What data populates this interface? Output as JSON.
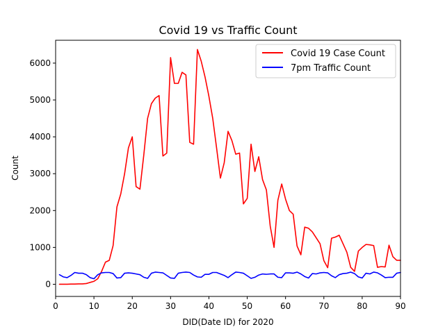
{
  "chart_data": {
    "type": "line",
    "title": "Covid 19 vs Traffic Count",
    "xlabel": "DID(Date ID) for 2020",
    "ylabel": "Count",
    "xlim": [
      0,
      90
    ],
    "ylim": [
      -330,
      6620
    ],
    "x_ticks": [
      0,
      10,
      20,
      30,
      40,
      50,
      60,
      70,
      80,
      90
    ],
    "y_ticks": [
      0,
      1000,
      2000,
      3000,
      4000,
      5000,
      6000
    ],
    "grid": false,
    "legend_position": "top-right",
    "series": [
      {
        "name": "Covid 19 Case Count",
        "color": "#ff0000",
        "x": [
          1,
          2,
          3,
          4,
          5,
          6,
          7,
          8,
          9,
          10,
          11,
          12,
          13,
          14,
          15,
          16,
          17,
          18,
          19,
          20,
          21,
          22,
          23,
          24,
          25,
          26,
          27,
          28,
          29,
          30,
          31,
          32,
          33,
          34,
          35,
          36,
          37,
          38,
          39,
          40,
          41,
          42,
          43,
          44,
          45,
          46,
          47,
          48,
          49,
          50,
          51,
          52,
          53,
          54,
          55,
          56,
          57,
          58,
          59,
          60,
          61,
          62,
          63,
          64,
          65,
          66,
          67,
          68,
          69,
          70,
          71,
          72,
          73,
          74,
          75,
          76,
          77,
          78,
          79,
          80,
          81,
          82,
          83,
          84,
          85,
          86,
          87,
          88,
          89,
          90
        ],
        "values": [
          0,
          0,
          0,
          5,
          5,
          10,
          10,
          20,
          50,
          80,
          150,
          350,
          600,
          650,
          1050,
          2100,
          2450,
          3000,
          3700,
          4000,
          2650,
          2580,
          3500,
          4500,
          4900,
          5050,
          5120,
          3480,
          3560,
          6150,
          5450,
          5450,
          5750,
          5680,
          3850,
          3800,
          6370,
          6050,
          5620,
          5100,
          4500,
          3700,
          2880,
          3300,
          4150,
          3900,
          3530,
          3560,
          2180,
          2330,
          3800,
          3060,
          3460,
          2840,
          2560,
          1580,
          1000,
          2280,
          2720,
          2310,
          2000,
          1900,
          1040,
          800,
          1550,
          1520,
          1420,
          1260,
          1100,
          640,
          450,
          1250,
          1280,
          1330,
          1100,
          870,
          460,
          350,
          900,
          1000,
          1080,
          1070,
          1050,
          460,
          480,
          470,
          1060,
          750,
          650,
          650
        ]
      },
      {
        "name": "7pm Traffic Count",
        "color": "#0000ff",
        "x": [
          1,
          2,
          3,
          4,
          5,
          6,
          7,
          8,
          9,
          10,
          11,
          12,
          13,
          14,
          15,
          16,
          17,
          18,
          19,
          20,
          21,
          22,
          23,
          24,
          25,
          26,
          27,
          28,
          29,
          30,
          31,
          32,
          33,
          34,
          35,
          36,
          37,
          38,
          39,
          40,
          41,
          42,
          43,
          44,
          45,
          46,
          47,
          48,
          49,
          50,
          51,
          52,
          53,
          54,
          55,
          56,
          57,
          58,
          59,
          60,
          61,
          62,
          63,
          64,
          65,
          66,
          67,
          68,
          69,
          70,
          71,
          72,
          73,
          74,
          75,
          76,
          77,
          78,
          79,
          80,
          81,
          82,
          83,
          84,
          85,
          86,
          87,
          88,
          89,
          90
        ],
        "values": [
          260,
          200,
          180,
          240,
          320,
          300,
          300,
          260,
          180,
          150,
          260,
          310,
          320,
          320,
          290,
          170,
          180,
          300,
          310,
          300,
          280,
          260,
          190,
          160,
          300,
          330,
          320,
          310,
          240,
          170,
          160,
          300,
          320,
          330,
          320,
          250,
          200,
          190,
          270,
          270,
          320,
          320,
          280,
          240,
          180,
          260,
          330,
          320,
          300,
          230,
          160,
          190,
          250,
          280,
          270,
          280,
          280,
          190,
          180,
          310,
          310,
          300,
          330,
          280,
          210,
          170,
          290,
          280,
          310,
          320,
          310,
          230,
          180,
          260,
          290,
          300,
          330,
          290,
          200,
          170,
          300,
          280,
          330,
          310,
          250,
          180,
          190,
          190,
          300,
          320
        ]
      }
    ]
  }
}
